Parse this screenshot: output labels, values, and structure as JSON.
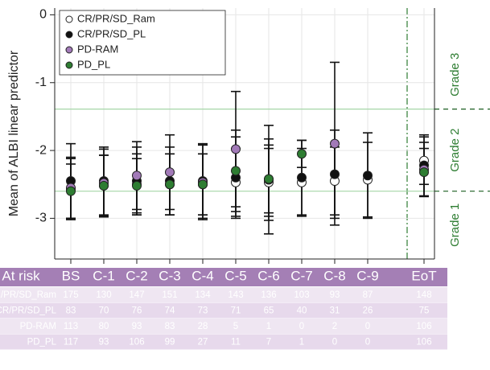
{
  "chart_data": {
    "type": "errorbar",
    "y_label": "Mean of ALBI linear predictor",
    "categories": [
      "BS",
      "C-1",
      "C-2",
      "C-3",
      "C-4",
      "C-5",
      "C-6",
      "C-7",
      "C-8",
      "C-9",
      "EoT"
    ],
    "ylim": [
      -3.6,
      0.1
    ],
    "yticks": [
      -3,
      -2,
      -1,
      0
    ],
    "grid": true,
    "legend": "upper left",
    "reference_lines": [
      -1.39,
      -2.6
    ],
    "annotations": [
      "Grade 3",
      "Grade 2",
      "Grade 1"
    ],
    "series": [
      {
        "name": "CR/PR/SD_Ram",
        "color": "#ffffff",
        "values": [
          -2.57,
          -2.52,
          -2.5,
          -2.5,
          -2.5,
          -2.47,
          -2.47,
          -2.47,
          -2.45,
          -2.43,
          -2.15
        ],
        "errors": [
          0.45,
          0.45,
          0.45,
          0.45,
          0.45,
          0.5,
          0.5,
          0.5,
          0.5,
          0.55,
          0.35
        ]
      },
      {
        "name": "CR/PR/SD_PL",
        "color": "#111111",
        "values": [
          -2.45,
          -2.45,
          -2.45,
          -2.45,
          -2.45,
          -2.4,
          -2.43,
          -2.4,
          -2.35,
          -2.37,
          -2.22
        ],
        "errors": [
          0.55,
          0.5,
          0.5,
          0.5,
          0.55,
          0.6,
          0.6,
          0.55,
          0.65,
          0.63,
          0.45
        ]
      },
      {
        "name": "PD-RAM",
        "color": "#a27ab8",
        "values": [
          -2.55,
          -2.48,
          -2.37,
          -2.32,
          -2.47,
          -1.98,
          -2.43,
          null,
          -1.9,
          null,
          -2.28
        ],
        "errors": [
          0.45,
          0.5,
          0.5,
          0.55,
          0.55,
          0.85,
          0.8,
          null,
          1.2,
          null,
          0.4
        ]
      },
      {
        "name": "PD_PL",
        "color": "#2e7d32",
        "values": [
          -2.6,
          -2.52,
          -2.52,
          -2.5,
          -2.5,
          -2.3,
          -2.42,
          -2.05,
          null,
          null,
          -2.32
        ],
        "errors": [
          0.4,
          0.45,
          0.4,
          0.45,
          0.45,
          0.6,
          0.5,
          0.2,
          null,
          null,
          0.35
        ]
      }
    ]
  },
  "table": {
    "header": [
      "At risk",
      "BS",
      "C-1",
      "C-2",
      "C-3",
      "C-4",
      "C-5",
      "C-6",
      "C-7",
      "C-8",
      "C-9",
      "EoT"
    ],
    "rows": [
      [
        "CR/PR/SD_Ram",
        "175",
        "130",
        "147",
        "151",
        "134",
        "143",
        "136",
        "103",
        "93",
        "87",
        "148"
      ],
      [
        "CR/PR/SD_PL",
        "83",
        "70",
        "76",
        "74",
        "73",
        "71",
        "65",
        "40",
        "31",
        "26",
        "75"
      ],
      [
        "PD-RAM",
        "113",
        "80",
        "93",
        "83",
        "28",
        "5",
        "1",
        "0",
        "2",
        "0",
        "106"
      ],
      [
        "PD_PL",
        "117",
        "93",
        "106",
        "99",
        "27",
        "11",
        "7",
        "1",
        "0",
        "0",
        "106"
      ]
    ]
  }
}
